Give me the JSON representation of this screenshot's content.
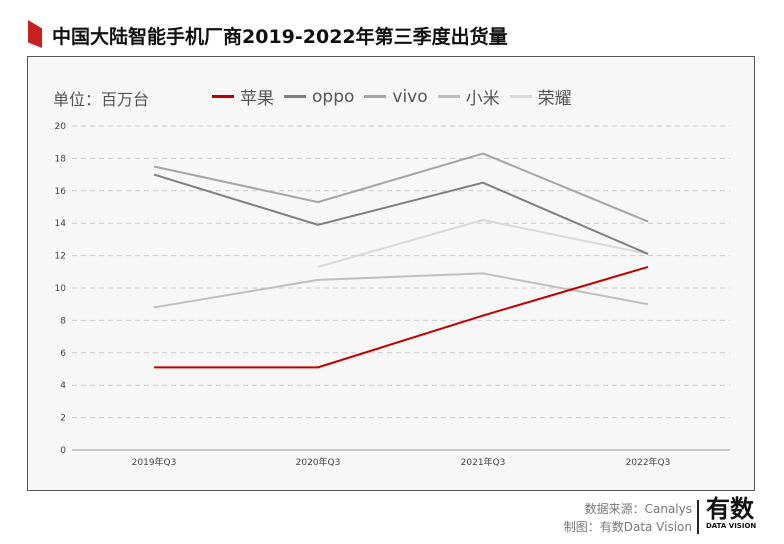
{
  "chart_data": {
    "type": "line",
    "title": "中国大陆智能手机厂商2019-2022年第三季度出货量",
    "unit_label": "单位：百万台",
    "categories": [
      "2019年Q3",
      "2020年Q3",
      "2021年Q3",
      "2022年Q3"
    ],
    "ylim": [
      0,
      20
    ],
    "yticks": [
      0,
      2,
      4,
      6,
      8,
      10,
      12,
      14,
      16,
      18,
      20
    ],
    "grid": true,
    "legend_position": "top",
    "series": [
      {
        "name": "苹果",
        "color": "#c00000",
        "values": [
          5.1,
          5.1,
          8.3,
          11.3
        ]
      },
      {
        "name": "oppo",
        "color": "#7f7f7f",
        "values": [
          17.0,
          13.9,
          16.5,
          12.1
        ]
      },
      {
        "name": "vivo",
        "color": "#a5a5a5",
        "values": [
          17.5,
          15.3,
          18.3,
          14.1
        ]
      },
      {
        "name": "小米",
        "color": "#bfbfbf",
        "values": [
          8.8,
          10.5,
          10.9,
          9.0
        ]
      },
      {
        "name": "荣耀",
        "color": "#d9d9d9",
        "values": [
          null,
          11.3,
          14.2,
          12.1
        ]
      }
    ]
  },
  "footer": {
    "source": "数据来源：Canalys",
    "maker": "制图：有数Data Vision"
  },
  "logo": {
    "text": "有数",
    "sub": "DATA VISION"
  }
}
